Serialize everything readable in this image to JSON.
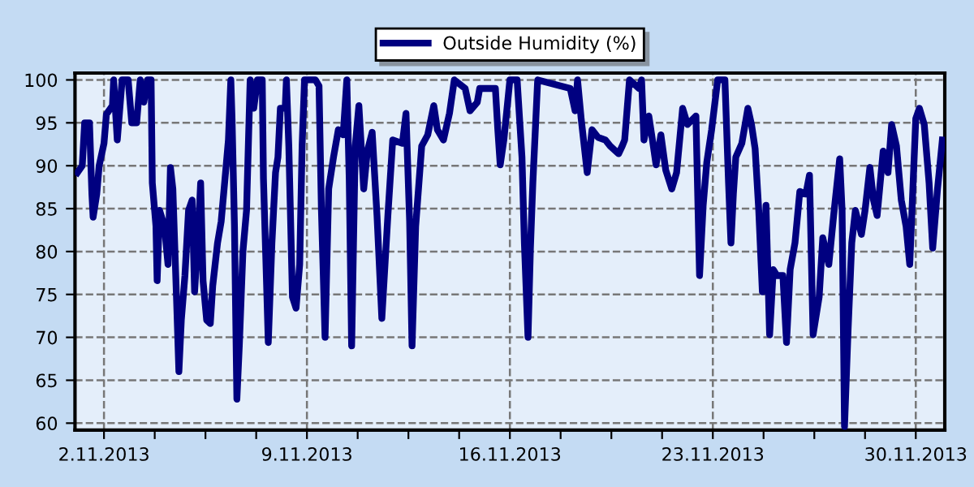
{
  "chart_data": {
    "type": "line",
    "xlim": [
      "2013-11-01",
      "2013-12-01"
    ],
    "ylim": [
      59.2,
      100.8
    ],
    "yticks": [
      60,
      65,
      70,
      75,
      80,
      85,
      90,
      95,
      100
    ],
    "xticks": [
      {
        "value": "2013-11-02",
        "label": "2.11.2013"
      },
      {
        "value": "2013-11-03T18:00",
        "label": null
      },
      {
        "value": "2013-11-05T12:00",
        "label": null
      },
      {
        "value": "2013-11-07T06:00",
        "label": null
      },
      {
        "value": "2013-11-09",
        "label": "9.11.2013"
      },
      {
        "value": "2013-11-10T18:00",
        "label": null
      },
      {
        "value": "2013-11-12T12:00",
        "label": null
      },
      {
        "value": "2013-11-14T06:00",
        "label": null
      },
      {
        "value": "2013-11-16",
        "label": "16.11.2013"
      },
      {
        "value": "2013-11-17T18:00",
        "label": null
      },
      {
        "value": "2013-11-19T12:00",
        "label": null
      },
      {
        "value": "2013-11-21T06:00",
        "label": null
      },
      {
        "value": "2013-11-23",
        "label": "23.11.2013"
      },
      {
        "value": "2013-11-24T18:00",
        "label": null
      },
      {
        "value": "2013-11-26T12:00",
        "label": null
      },
      {
        "value": "2013-11-28T06:00",
        "label": null
      },
      {
        "value": "2013-11-30",
        "label": "30.11.2013"
      }
    ],
    "grid": true,
    "legend": "top",
    "marker": "none",
    "line_style": "solid",
    "series": [
      {
        "name": "Outside Humidity (%)",
        "color": "#000080",
        "x": [
          "2013-11-01T02:00",
          "2013-11-01T06:00",
          "2013-11-01T08:00",
          "2013-11-01T12:00",
          "2013-11-01T14:00",
          "2013-11-01T15:00",
          "2013-11-01T18:00",
          "2013-11-01T20:00",
          "2013-11-02T00:00",
          "2013-11-02T02:00",
          "2013-11-02T07:00",
          "2013-11-02T08:00",
          "2013-11-02T11:00",
          "2013-11-02T15:00",
          "2013-11-02T20:00",
          "2013-11-02T23:00",
          "2013-11-03T03:00",
          "2013-11-03T06:00",
          "2013-11-03T09:00",
          "2013-11-03T12:00",
          "2013-11-03T15:00",
          "2013-11-03T16:00",
          "2013-11-03T19:00",
          "2013-11-03T20:00",
          "2013-11-03T22:00",
          "2013-11-04T02:00",
          "2013-11-04T04:00",
          "2013-11-04T05:00",
          "2013-11-04T07:00",
          "2013-11-04T09:00",
          "2013-11-04T12:00",
          "2013-11-04T14:00",
          "2013-11-04T16:00",
          "2013-11-04T19:00",
          "2013-11-04T22:00",
          "2013-11-05T01:00",
          "2013-11-05T03:00",
          "2013-11-05T06:00",
          "2013-11-05T08:00",
          "2013-11-05T10:00",
          "2013-11-05T13:00",
          "2013-11-05T16:00",
          "2013-11-05T18:00",
          "2013-11-05T22:00",
          "2013-11-06T01:00",
          "2013-11-06T05:00",
          "2013-11-06T07:00",
          "2013-11-06T09:00",
          "2013-11-06T10:00",
          "2013-11-06T12:00",
          "2013-11-06T14:00",
          "2013-11-06T16:00",
          "2013-11-06T19:00",
          "2013-11-06T22:00",
          "2013-11-07T01:00",
          "2013-11-07T04:00",
          "2013-11-07T07:00",
          "2013-11-07T11:00",
          "2013-11-07T12:00",
          "2013-11-07T14:00",
          "2013-11-07T16:00",
          "2013-11-07T19:00",
          "2013-11-07T22:00",
          "2013-11-08T00:00",
          "2013-11-08T02:00",
          "2013-11-08T06:00",
          "2013-11-08T07:00",
          "2013-11-08T09:00",
          "2013-11-08T12:00",
          "2013-11-08T15:00",
          "2013-11-08T18:00",
          "2013-11-08T20:00",
          "2013-11-08T22:00",
          "2013-11-09T07:00",
          "2013-11-09T10:00",
          "2013-11-09T12:00",
          "2013-11-09T15:00",
          "2013-11-09T18:00",
          "2013-11-09T22:00",
          "2013-11-10T02:00",
          "2013-11-10T06:00",
          "2013-11-10T09:00",
          "2013-11-10T11:00",
          "2013-11-10T13:00",
          "2013-11-10T16:00",
          "2013-11-10T19:00",
          "2013-11-10T23:00",
          "2013-11-11T02:00",
          "2013-11-11T06:00",
          "2013-11-11T10:00",
          "2013-11-11T14:00",
          "2013-11-11T19:00",
          "2013-11-11T23:00",
          "2013-11-12T07:00",
          "2013-11-12T10:00",
          "2013-11-12T13:00",
          "2013-11-12T15:00",
          "2013-11-12T18:00",
          "2013-11-12T23:00",
          "2013-11-13T04:00",
          "2013-11-13T09:00",
          "2013-11-13T12:00",
          "2013-11-13T17:00",
          "2013-11-13T22:00",
          "2013-11-14T02:00",
          "2013-11-14T11:00",
          "2013-11-14T15:00",
          "2013-11-14T21:00",
          "2013-11-14T23:00",
          "2013-11-15T12:00",
          "2013-11-15T14:00",
          "2013-11-15T16:00",
          "2013-11-15T19:00",
          "2013-11-16T00:00",
          "2013-11-16T06:00",
          "2013-11-16T10:00",
          "2013-11-16T12:00",
          "2013-11-16T15:00",
          "2013-11-16T17:00",
          "2013-11-16T19:00",
          "2013-11-16T23:00",
          "2013-11-18T02:00",
          "2013-11-18T06:00",
          "2013-11-18T08:00",
          "2013-11-18T11:00",
          "2013-11-18T16:00",
          "2013-11-18T20:00",
          "2013-11-19T01:00",
          "2013-11-19T07:00",
          "2013-11-19T11:00",
          "2013-11-19T18:00",
          "2013-11-19T21:00",
          "2013-11-19T23:00",
          "2013-11-20T03:00",
          "2013-11-20T11:00",
          "2013-11-20T13:00",
          "2013-11-20T15:00",
          "2013-11-20T19:00",
          "2013-11-20T22:00",
          "2013-11-21T01:00",
          "2013-11-21T05:00",
          "2013-11-21T09:00",
          "2013-11-21T14:00",
          "2013-11-21T18:00",
          "2013-11-21T23:00",
          "2013-11-22T03:00",
          "2013-11-22T10:00",
          "2013-11-22T13:00",
          "2013-11-22T16:00",
          "2013-11-22T19:00",
          "2013-11-22T23:00",
          "2013-11-23T04:00",
          "2013-11-23T10:00",
          "2013-11-23T13:00",
          "2013-11-23T15:00",
          "2013-11-23T17:00",
          "2013-11-23T19:00",
          "2013-11-24T00:00",
          "2013-11-24T05:00",
          "2013-11-24T08:00",
          "2013-11-24T11:00",
          "2013-11-24T14:00",
          "2013-11-24T17:00",
          "2013-11-24T20:00",
          "2013-11-24T23:00",
          "2013-11-25T02:00",
          "2013-11-25T05:00",
          "2013-11-25T10:00",
          "2013-11-25T13:00",
          "2013-11-25T16:00",
          "2013-11-25T20:00",
          "2013-11-26T00:00",
          "2013-11-26T05:00",
          "2013-11-26T08:00",
          "2013-11-26T11:00",
          "2013-11-26T16:00",
          "2013-11-26T19:00",
          "2013-11-27T00:00",
          "2013-11-27T04:00",
          "2013-11-27T09:00",
          "2013-11-27T11:00",
          "2013-11-27T13:00",
          "2013-11-27T16:00",
          "2013-11-27T19:00",
          "2013-11-27T22:00",
          "2013-11-28T03:00",
          "2013-11-28T06:00",
          "2013-11-28T10:00",
          "2013-11-28T13:00",
          "2013-11-28T16:00",
          "2013-11-28T21:00",
          "2013-11-29T01:00",
          "2013-11-29T04:00",
          "2013-11-29T08:00",
          "2013-11-29T12:00",
          "2013-11-29T16:00",
          "2013-11-29T19:00",
          "2013-11-30T00:00",
          "2013-11-30T03:00",
          "2013-11-30T07:00",
          "2013-11-30T11:00",
          "2013-11-30T14:00",
          "2013-11-30T18:00",
          "2013-11-30T22:00"
        ],
        "values": [
          89.2,
          90,
          95,
          95,
          86.7,
          84,
          86.7,
          90,
          92.6,
          96,
          97,
          100,
          93,
          100,
          100,
          95,
          95,
          100,
          97.4,
          100,
          100,
          88,
          83,
          76.6,
          84.8,
          83,
          80,
          78.5,
          89.8,
          87.3,
          74.7,
          66,
          72,
          77.2,
          84.8,
          86,
          75.3,
          82,
          88,
          76.6,
          72,
          71.6,
          76,
          81,
          83.5,
          89.8,
          93,
          100,
          95.5,
          83,
          62.8,
          69,
          80,
          84.8,
          100,
          96.7,
          100,
          100,
          88.5,
          79,
          69.4,
          81,
          89.2,
          91,
          96.7,
          96.7,
          100,
          92.3,
          74.7,
          73.4,
          78.5,
          92.3,
          100,
          100,
          99.3,
          84.8,
          70,
          87.3,
          91,
          94.2,
          93.6,
          100,
          88.5,
          69,
          92.3,
          97,
          87.3,
          91.7,
          93.9,
          84.2,
          72.2,
          84.2,
          93,
          92.6,
          96.1,
          83.5,
          69,
          82.9,
          92.3,
          93.6,
          97,
          94.2,
          93,
          96.1,
          100,
          99,
          96.4,
          97.4,
          99,
          99,
          94.2,
          90.1,
          93,
          100,
          100,
          91,
          81,
          70,
          80.4,
          88,
          100,
          99,
          96.4,
          100,
          95.5,
          89.2,
          94.2,
          93.3,
          93,
          92.3,
          91.4,
          92.3,
          93,
          100,
          99,
          100,
          93,
          95.8,
          93,
          90.1,
          93.6,
          89.5,
          87.3,
          89.2,
          96.7,
          94.8,
          95.8,
          77.2,
          85.4,
          90.4,
          94.2,
          100,
          100,
          88,
          81,
          86.7,
          91,
          92.6,
          96.7,
          94.8,
          92,
          84.8,
          75.3,
          85.4,
          70.3,
          77.9,
          77.2,
          77.2,
          69.4,
          77.9,
          81,
          87,
          86.7,
          88.9,
          70.3,
          74.7,
          81.6,
          78.5,
          84.2,
          90.8,
          84.8,
          59.6,
          71,
          81,
          84.8,
          82,
          84.8,
          89.8,
          86,
          84.2,
          91.7,
          89.2,
          94.8,
          92.3,
          86,
          82.9,
          78.5,
          95.5,
          96.7,
          94.8,
          88,
          80.4,
          87.3,
          93
        ]
      }
    ]
  }
}
